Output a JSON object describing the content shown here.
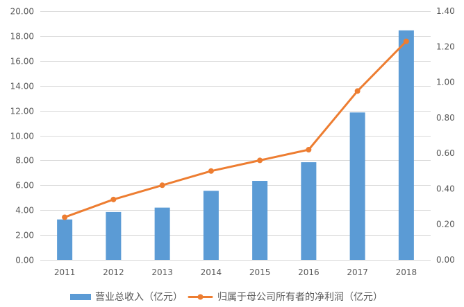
{
  "chart_data": {
    "type": "bar",
    "categories": [
      "2011",
      "2012",
      "2013",
      "2014",
      "2015",
      "2016",
      "2017",
      "2018"
    ],
    "series": [
      {
        "name": "营业总收入（亿元）",
        "type": "bar",
        "axis": "left",
        "color": "#5B9BD5",
        "values": [
          3.25,
          3.85,
          4.2,
          5.55,
          6.35,
          7.85,
          11.85,
          18.45
        ]
      },
      {
        "name": "归属于母公司所有者的净利润（亿元）",
        "type": "line",
        "axis": "right",
        "color": "#ED7D31",
        "values": [
          0.24,
          0.34,
          0.42,
          0.5,
          0.56,
          0.62,
          0.95,
          1.23
        ]
      }
    ],
    "y_left": {
      "min": 0,
      "max": 20,
      "tick_labels": [
        "0.00",
        "2.00",
        "4.00",
        "6.00",
        "8.00",
        "10.00",
        "12.00",
        "14.00",
        "16.00",
        "18.00",
        "20.00"
      ]
    },
    "y_right": {
      "min": 0,
      "max": 1.4,
      "tick_labels": [
        "0.00",
        "0.20",
        "0.40",
        "0.60",
        "0.80",
        "1.00",
        "1.20",
        "1.40"
      ]
    },
    "grid": true,
    "legend": "bottom"
  }
}
